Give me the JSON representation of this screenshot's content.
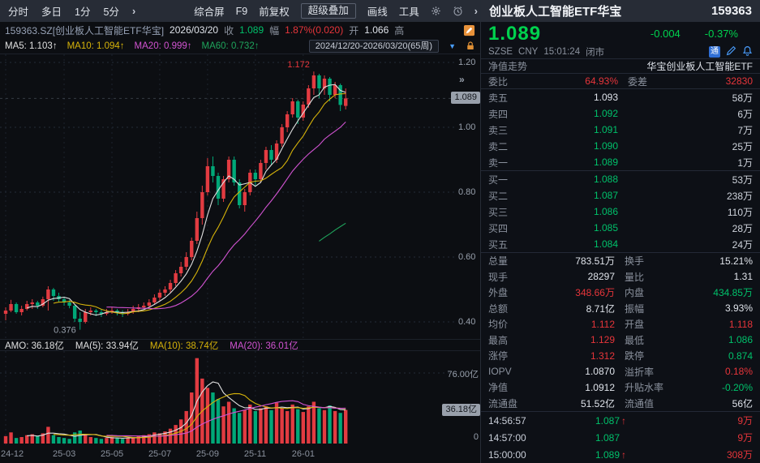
{
  "colors": {
    "red": "#e6353a",
    "green": "#00c06a",
    "big_green": "#00d24e",
    "candle_up": "#e23b41",
    "candle_down": "#00a878",
    "ma5": "#e0e0e0",
    "ma10": "#d6b30a",
    "ma20": "#d153d1",
    "ma60": "#1fa45c",
    "badge_bg": "#99a0ab",
    "accent_blue": "#4a9eff",
    "accent_orange": "#e8923a"
  },
  "icons": {
    "arrow_right": "›",
    "expand": "»",
    "dropdown": "▼"
  },
  "topbar": {
    "tabs": [
      "分时",
      "多日",
      "1分",
      "5分"
    ],
    "buttons": [
      "综合屏",
      "F9",
      "前复权",
      "超级叠加",
      "画线",
      "工具"
    ]
  },
  "info_row": {
    "symbol": "159363.SZ[创业板人工智能ETF华宝]",
    "date": "2026/03/20",
    "close_label": "收",
    "close": "1.089",
    "chg_label": "幅",
    "chg": "1.87%(0.020)",
    "open_label": "开",
    "open": "1.066",
    "high_label": "高"
  },
  "ma_row": {
    "ma5": "MA5: 1.103↑",
    "ma10": "MA10: 1.094↑",
    "ma20": "MA20: 0.999↑",
    "ma60": "MA60: 0.732↑",
    "range": "2024/12/20-2026/03/20(65周)"
  },
  "amo_row": {
    "amo": "AMO: 36.18亿",
    "ma5": "MA(5): 33.94亿",
    "ma10": "MA(10): 38.74亿",
    "ma20": "MA(20): 36.01亿"
  },
  "main_axis": {
    "badge": "1.089",
    "badge_price": 1.089
  },
  "vol_axis": {
    "top_label": "76.00亿",
    "top_value": 76,
    "zero": "0",
    "badge": "36.18亿",
    "badge_value": 36.18
  },
  "chart_data": {
    "type": "candlestick",
    "period": "weekly",
    "range": "2024/12/20-2026/03/20",
    "weeks": 65,
    "y_ticks": [
      {
        "label": "1.20",
        "value": 1.2
      },
      {
        "label": "1.00",
        "value": 1.0
      },
      {
        "label": "0.80",
        "value": 0.8
      },
      {
        "label": "0.60",
        "value": 0.6
      },
      {
        "label": "0.40",
        "value": 0.4
      }
    ],
    "x_ticks": [
      {
        "label": "24-12",
        "week": 1
      },
      {
        "label": "25-03",
        "week": 12
      },
      {
        "label": "25-05",
        "week": 21
      },
      {
        "label": "25-07",
        "week": 30
      },
      {
        "label": "25-09",
        "week": 39
      },
      {
        "label": "25-11",
        "week": 48
      },
      {
        "label": "26-01",
        "week": 57
      }
    ],
    "high_annotation": {
      "text": "1.172",
      "week": 59
    },
    "low_annotation": {
      "text": "0.376",
      "week": 15
    },
    "candles": [
      [
        0.425,
        0.445,
        0.405,
        0.435
      ],
      [
        0.435,
        0.468,
        0.43,
        0.455
      ],
      [
        0.455,
        0.46,
        0.425,
        0.43
      ],
      [
        0.43,
        0.45,
        0.42,
        0.44
      ],
      [
        0.44,
        0.465,
        0.435,
        0.455
      ],
      [
        0.455,
        0.47,
        0.44,
        0.46
      ],
      [
        0.46,
        0.465,
        0.44,
        0.45
      ],
      [
        0.45,
        0.478,
        0.445,
        0.47
      ],
      [
        0.47,
        0.51,
        0.435,
        0.5
      ],
      [
        0.5,
        0.505,
        0.465,
        0.48
      ],
      [
        0.48,
        0.49,
        0.46,
        0.47
      ],
      [
        0.47,
        0.478,
        0.45,
        0.46
      ],
      [
        0.46,
        0.468,
        0.442,
        0.45
      ],
      [
        0.45,
        0.452,
        0.4,
        0.41
      ],
      [
        0.41,
        0.43,
        0.376,
        0.4
      ],
      [
        0.4,
        0.44,
        0.395,
        0.43
      ],
      [
        0.43,
        0.445,
        0.42,
        0.435
      ],
      [
        0.435,
        0.44,
        0.418,
        0.43
      ],
      [
        0.43,
        0.438,
        0.415,
        0.425
      ],
      [
        0.425,
        0.44,
        0.42,
        0.43
      ],
      [
        0.43,
        0.445,
        0.425,
        0.435
      ],
      [
        0.435,
        0.44,
        0.42,
        0.43
      ],
      [
        0.43,
        0.436,
        0.415,
        0.425
      ],
      [
        0.425,
        0.44,
        0.42,
        0.43
      ],
      [
        0.43,
        0.45,
        0.425,
        0.44
      ],
      [
        0.44,
        0.455,
        0.43,
        0.445
      ],
      [
        0.445,
        0.46,
        0.44,
        0.45
      ],
      [
        0.45,
        0.47,
        0.445,
        0.46
      ],
      [
        0.46,
        0.485,
        0.455,
        0.475
      ],
      [
        0.475,
        0.5,
        0.465,
        0.49
      ],
      [
        0.49,
        0.51,
        0.48,
        0.5
      ],
      [
        0.5,
        0.53,
        0.49,
        0.52
      ],
      [
        0.52,
        0.56,
        0.51,
        0.55
      ],
      [
        0.55,
        0.585,
        0.54,
        0.57
      ],
      [
        0.57,
        0.615,
        0.56,
        0.6
      ],
      [
        0.6,
        0.66,
        0.59,
        0.65
      ],
      [
        0.65,
        0.74,
        0.64,
        0.72
      ],
      [
        0.72,
        0.82,
        0.7,
        0.8
      ],
      [
        0.8,
        0.905,
        0.79,
        0.88
      ],
      [
        0.88,
        0.91,
        0.83,
        0.85
      ],
      [
        0.85,
        0.86,
        0.76,
        0.78
      ],
      [
        0.78,
        0.85,
        0.77,
        0.84
      ],
      [
        0.84,
        0.91,
        0.83,
        0.9
      ],
      [
        0.9,
        0.91,
        0.82,
        0.83
      ],
      [
        0.83,
        0.84,
        0.75,
        0.76
      ],
      [
        0.76,
        0.81,
        0.74,
        0.8
      ],
      [
        0.8,
        0.87,
        0.79,
        0.86
      ],
      [
        0.86,
        0.87,
        0.82,
        0.84
      ],
      [
        0.84,
        0.9,
        0.83,
        0.89
      ],
      [
        0.89,
        0.94,
        0.87,
        0.93
      ],
      [
        0.93,
        0.945,
        0.885,
        0.9
      ],
      [
        0.9,
        0.96,
        0.89,
        0.95
      ],
      [
        0.95,
        1.01,
        0.94,
        1.0
      ],
      [
        1.0,
        1.05,
        0.985,
        1.04
      ],
      [
        1.04,
        1.09,
        1.03,
        1.08
      ],
      [
        1.08,
        1.085,
        1.01,
        1.03
      ],
      [
        1.03,
        1.08,
        1.02,
        1.07
      ],
      [
        1.07,
        1.13,
        1.06,
        1.12
      ],
      [
        1.12,
        1.172,
        1.1,
        1.16
      ],
      [
        1.16,
        1.165,
        1.09,
        1.12
      ],
      [
        1.12,
        1.16,
        1.1,
        1.15
      ],
      [
        1.15,
        1.155,
        1.08,
        1.1
      ],
      [
        1.1,
        1.14,
        1.09,
        1.13
      ],
      [
        1.13,
        1.135,
        1.05,
        1.069
      ],
      [
        1.066,
        1.12,
        1.055,
        1.089
      ]
    ],
    "volumes": [
      8,
      12,
      6,
      7,
      9,
      10,
      8,
      11,
      18,
      9,
      7,
      6,
      5,
      12,
      14,
      10,
      7,
      6,
      5,
      6,
      7,
      6,
      5,
      6,
      7,
      8,
      9,
      10,
      12,
      11,
      13,
      16,
      20,
      26,
      35,
      55,
      92,
      70,
      60,
      55,
      48,
      40,
      45,
      38,
      33,
      36,
      42,
      35,
      38,
      40,
      36,
      44,
      38,
      35,
      42,
      37,
      34,
      40,
      45,
      38,
      36,
      41,
      35,
      33,
      36.18
    ]
  },
  "panel": {
    "title": "创业板人工智能ETF华宝",
    "code": "159363",
    "price": "1.089",
    "change": "-0.004",
    "change_pct": "-0.37%",
    "exchange": "SZSE",
    "currency": "CNY",
    "time": "15:01:24",
    "status": "闭市",
    "tong_icon": "通",
    "nav_tab": "净值走势",
    "fund_name": "华宝创业板人工智能ETF",
    "weibi_label": "委比",
    "weibi": "64.93%",
    "weicha_label": "委差",
    "weicha": "32830",
    "asks": [
      {
        "label": "卖五",
        "price": "1.093",
        "cls": "flat",
        "vol": "58万"
      },
      {
        "label": "卖四",
        "price": "1.092",
        "cls": "green",
        "vol": "6万"
      },
      {
        "label": "卖三",
        "price": "1.091",
        "cls": "green",
        "vol": "7万"
      },
      {
        "label": "卖二",
        "price": "1.090",
        "cls": "green",
        "vol": "25万"
      },
      {
        "label": "卖一",
        "price": "1.089",
        "cls": "green",
        "vol": "1万"
      }
    ],
    "bids": [
      {
        "label": "买一",
        "price": "1.088",
        "cls": "green",
        "vol": "53万"
      },
      {
        "label": "买二",
        "price": "1.087",
        "cls": "green",
        "vol": "238万"
      },
      {
        "label": "买三",
        "price": "1.086",
        "cls": "green",
        "vol": "110万"
      },
      {
        "label": "买四",
        "price": "1.085",
        "cls": "green",
        "vol": "28万"
      },
      {
        "label": "买五",
        "price": "1.084",
        "cls": "green",
        "vol": "24万"
      }
    ],
    "stats": [
      {
        "l1": "总量",
        "v1": "783.51万",
        "c1": "white",
        "l2": "换手",
        "v2": "15.21%",
        "c2": "white"
      },
      {
        "l1": "现手",
        "v1": "28297",
        "c1": "white",
        "l2": "量比",
        "v2": "1.31",
        "c2": "white"
      },
      {
        "l1": "外盘",
        "v1": "348.66万",
        "c1": "red",
        "l2": "内盘",
        "v2": "434.85万",
        "c2": "green"
      },
      {
        "l1": "总额",
        "v1": "8.71亿",
        "c1": "white",
        "l2": "振幅",
        "v2": "3.93%",
        "c2": "white"
      },
      {
        "l1": "均价",
        "v1": "1.112",
        "c1": "red",
        "l2": "开盘",
        "v2": "1.118",
        "c2": "red"
      },
      {
        "l1": "最高",
        "v1": "1.129",
        "c1": "red",
        "l2": "最低",
        "v2": "1.086",
        "c2": "green"
      },
      {
        "l1": "涨停",
        "v1": "1.312",
        "c1": "red",
        "l2": "跌停",
        "v2": "0.874",
        "c2": "green"
      },
      {
        "l1": "IOPV",
        "v1": "1.0870",
        "c1": "white",
        "l2": "溢折率",
        "v2": "0.18%",
        "c2": "red"
      },
      {
        "l1": "净值",
        "v1": "1.0912",
        "c1": "white",
        "l2": "升贴水率",
        "v2": "-0.20%",
        "c2": "green"
      },
      {
        "l1": "流通盘",
        "v1": "51.52亿",
        "c1": "white",
        "l2": "流通值",
        "v2": "56亿",
        "c2": "white"
      }
    ],
    "ticks": [
      {
        "time": "14:56:57",
        "price": "1.087",
        "arrow": "↑",
        "vol": "9万"
      },
      {
        "time": "14:57:00",
        "price": "1.087",
        "arrow": "",
        "vol": "9万"
      },
      {
        "time": "15:00:00",
        "price": "1.089",
        "arrow": "↑",
        "vol": "308万"
      }
    ]
  }
}
